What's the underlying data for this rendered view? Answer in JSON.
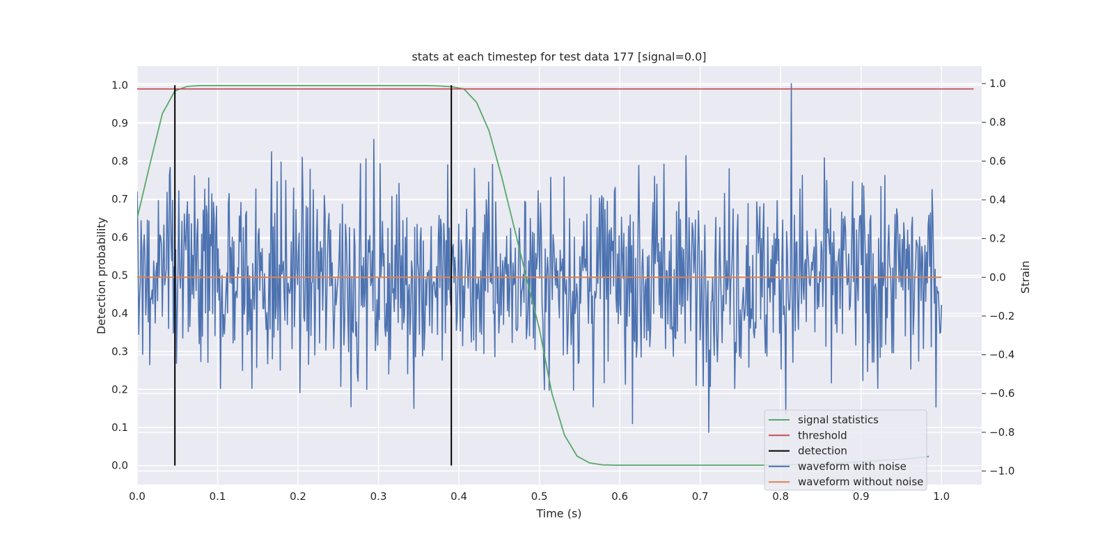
{
  "chart_data": {
    "type": "line",
    "title": "stats at each timestep for test data 177 [signal=0.0]",
    "xlabel": "Time (s)",
    "ylabel_left": "Detection probability",
    "ylabel_right": "Strain",
    "xlim": [
      0.0,
      1.05
    ],
    "ylim_left": [
      -0.05,
      1.05
    ],
    "ylim_right": [
      -1.07,
      1.09
    ],
    "x_ticks": [
      "0.0",
      "0.1",
      "0.2",
      "0.3",
      "0.4",
      "0.5",
      "0.6",
      "0.7",
      "0.8",
      "0.9",
      "1.0"
    ],
    "y_ticks_left": [
      "0.0",
      "0.1",
      "0.2",
      "0.3",
      "0.4",
      "0.5",
      "0.6",
      "0.7",
      "0.8",
      "0.9",
      "1.0"
    ],
    "y_ticks_right": [
      "−1.0",
      "−0.8",
      "−0.6",
      "−0.4",
      "−0.2",
      "0.0",
      "0.2",
      "0.4",
      "0.6",
      "0.8",
      "1.0"
    ],
    "grid": true,
    "legend_position": "lower-right",
    "colors": {
      "background": "#eaeaf2",
      "signal_statistics": "#55a868",
      "threshold": "#c44e52",
      "detection": "#000000",
      "waveform_noise": "#4c72b0",
      "waveform_clean": "#dd8452"
    },
    "series": [
      {
        "name": "signal statistics",
        "axis": "left",
        "x": [
          0.0,
          0.0156,
          0.0313,
          0.0469,
          0.0625,
          0.0781,
          0.0938,
          0.1094,
          0.125,
          0.1406,
          0.1563,
          0.1719,
          0.1875,
          0.2031,
          0.2188,
          0.2344,
          0.25,
          0.2656,
          0.2813,
          0.2969,
          0.3125,
          0.3281,
          0.3438,
          0.3594,
          0.375,
          0.3906,
          0.4063,
          0.4219,
          0.4375,
          0.4531,
          0.4688,
          0.4844,
          0.5,
          0.5156,
          0.5313,
          0.5469,
          0.5625,
          0.5781,
          0.5938,
          0.6094,
          0.625,
          0.6406,
          0.6563,
          0.6719,
          0.6875,
          0.7031,
          0.7188,
          0.7344,
          0.75,
          0.7656,
          0.7813,
          0.7969,
          0.8125,
          0.8281,
          0.8438,
          0.8594,
          0.875,
          0.8906,
          0.9063,
          0.9219,
          0.9375,
          0.9531,
          0.9688,
          0.9844
        ],
        "y": [
          0.65,
          0.79,
          0.925,
          0.985,
          0.997,
          0.999,
          0.999,
          0.999,
          0.999,
          0.999,
          0.999,
          0.999,
          0.999,
          0.999,
          0.999,
          0.999,
          0.999,
          0.999,
          0.999,
          0.999,
          0.999,
          0.999,
          0.999,
          0.999,
          0.998,
          0.996,
          0.99,
          0.955,
          0.88,
          0.76,
          0.625,
          0.49,
          0.36,
          0.19,
          0.08,
          0.025,
          0.007,
          0.002,
          0.001,
          0.001,
          0.001,
          0.001,
          0.001,
          0.001,
          0.001,
          0.001,
          0.001,
          0.001,
          0.001,
          0.001,
          0.001,
          0.001,
          0.002,
          0.003,
          0.004,
          0.005,
          0.007,
          0.009,
          0.011,
          0.013,
          0.015,
          0.017,
          0.02,
          0.024
        ]
      },
      {
        "name": "threshold",
        "axis": "left",
        "x": [
          0.0,
          1.04
        ],
        "y": [
          0.99,
          0.99
        ]
      },
      {
        "name": "detection",
        "axis": "left",
        "x": [
          0.0469,
          0.3906
        ],
        "y_range": [
          0.0,
          1.0
        ]
      },
      {
        "name": "waveform with noise",
        "axis": "right",
        "n_points": 1024,
        "x_range": [
          0.0,
          1.0
        ],
        "y_range_observed": [
          -0.8,
          1.0
        ],
        "noise_std": 0.26,
        "peak": {
          "x": 0.813,
          "y": 1.0
        }
      },
      {
        "name": "waveform without noise",
        "axis": "right",
        "x": [
          0.0,
          1.0
        ],
        "y": [
          0.0,
          0.0
        ]
      }
    ]
  }
}
